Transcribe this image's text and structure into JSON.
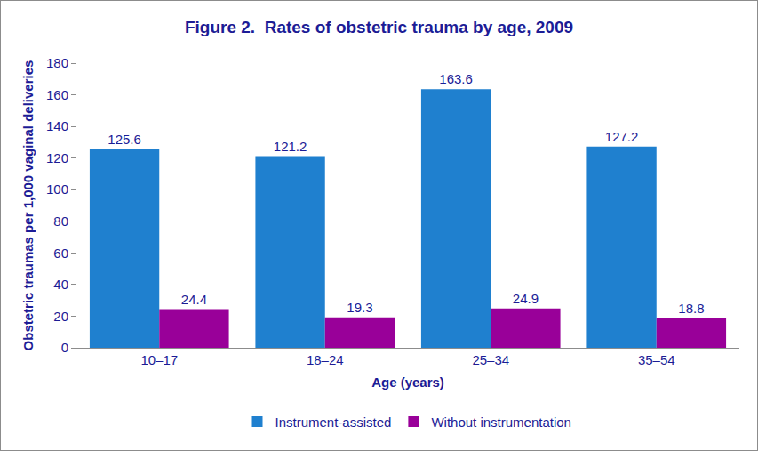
{
  "chart_data": {
    "type": "bar",
    "title": "Figure 2.  Rates of obstetric trauma by age, 2009",
    "x_label": "Age (years)",
    "y_label": "Obstetric traumas per 1,000 vaginal deliveries",
    "categories": [
      "10–17",
      "18–24",
      "25–34",
      "35–54"
    ],
    "series": [
      {
        "name": "Instrument-assisted",
        "color": "#1f80cf",
        "values": [
          125.6,
          121.2,
          163.6,
          127.2
        ]
      },
      {
        "name": "Without instrumentation",
        "color": "#990099",
        "values": [
          24.4,
          19.3,
          24.9,
          18.8
        ]
      }
    ],
    "ylim": [
      0,
      180
    ],
    "yticks": [
      0,
      20,
      40,
      60,
      80,
      100,
      120,
      140,
      160,
      180
    ],
    "grid": false,
    "legend": "bottom",
    "data_labels": true
  }
}
